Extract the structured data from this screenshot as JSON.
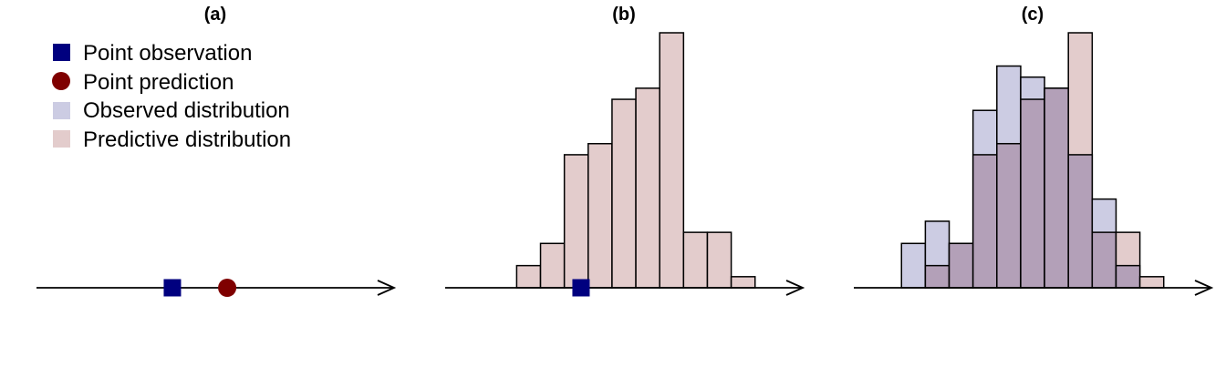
{
  "legend": [
    {
      "label": "Point observation",
      "marker": "square",
      "color": "#00007f"
    },
    {
      "label": "Point prediction",
      "marker": "circle",
      "color": "#7f0000"
    },
    {
      "label": "Observed distribution",
      "marker": "patch",
      "color": "#cccce3"
    },
    {
      "label": "Predictive distribution",
      "marker": "patch",
      "color": "#e3cccc"
    }
  ],
  "colors": {
    "observation": "#00007f",
    "prediction": "#7f0000",
    "observed_fill": "#cccce3",
    "predictive_fill": "#e3cccc",
    "overlap_fill": "#b3a0b8",
    "axis": "#000000"
  },
  "chart_data": [
    {
      "type": "scatter",
      "title": "(a)",
      "xlabel": "",
      "ylabel": "",
      "xlim": [
        0,
        15
      ],
      "points": [
        {
          "role": "observation",
          "x": 5.7,
          "marker": "square"
        },
        {
          "role": "prediction",
          "x": 8.0,
          "marker": "circle"
        }
      ]
    },
    {
      "type": "bar",
      "title": "(b)",
      "xlabel": "",
      "ylabel": "",
      "xlim": [
        0,
        15
      ],
      "ylim": [
        0,
        23
      ],
      "bins": [
        3,
        4,
        5,
        6,
        7,
        8,
        9,
        10,
        11,
        12
      ],
      "series": [
        {
          "role": "predictive",
          "values": [
            2,
            4,
            12,
            13,
            17,
            18,
            23,
            5,
            5,
            1
          ]
        }
      ],
      "points": [
        {
          "role": "observation",
          "x": 5.7,
          "marker": "square"
        }
      ]
    },
    {
      "type": "bar",
      "title": "(c)",
      "xlabel": "",
      "ylabel": "",
      "xlim": [
        0,
        15
      ],
      "ylim": [
        0,
        23
      ],
      "bins": [
        2,
        3,
        4,
        5,
        6,
        7,
        8,
        9,
        10,
        11,
        12
      ],
      "series": [
        {
          "role": "observed",
          "values": [
            4,
            6,
            4,
            16,
            20,
            19,
            18,
            12,
            8,
            2,
            0
          ]
        },
        {
          "role": "predictive",
          "values": [
            0,
            2,
            4,
            12,
            13,
            17,
            18,
            23,
            5,
            5,
            1
          ]
        }
      ]
    }
  ]
}
